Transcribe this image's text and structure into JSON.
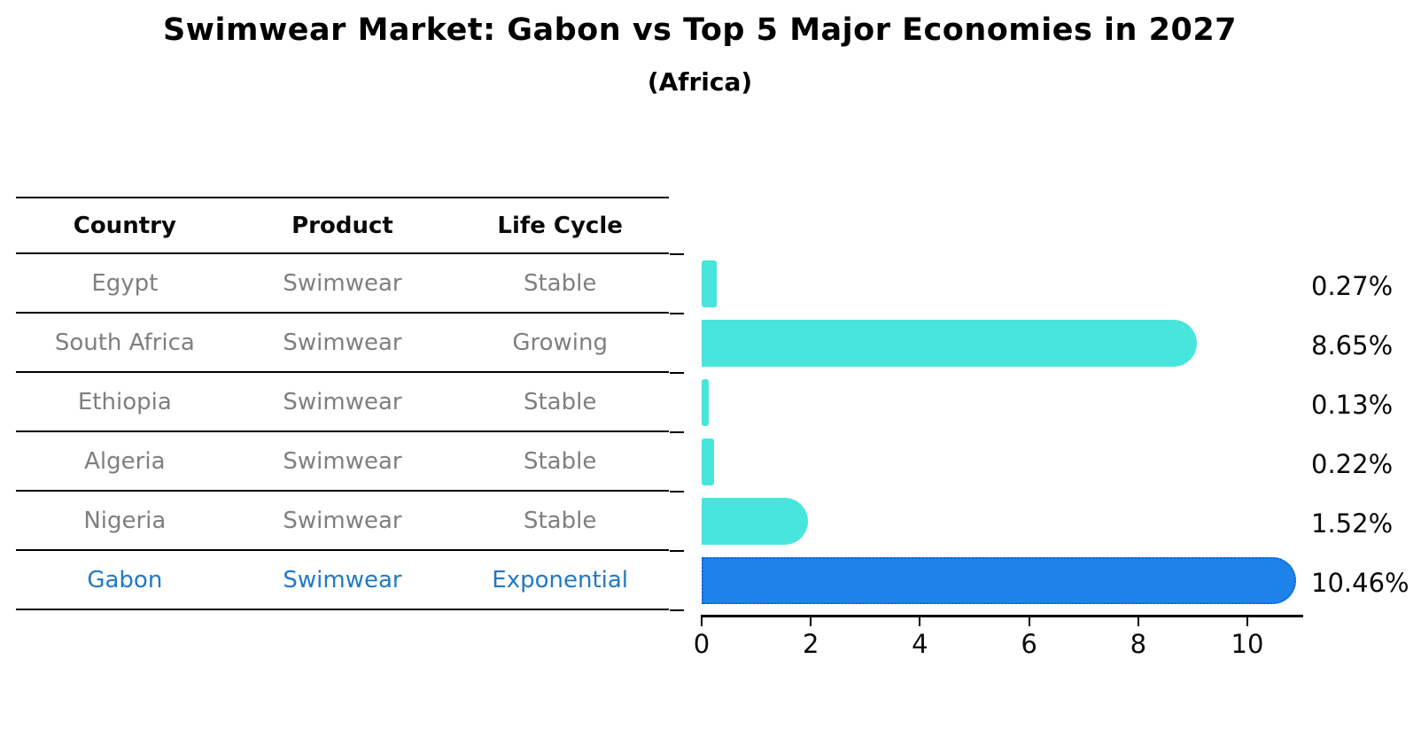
{
  "title": "Swimwear Market: Gabon vs Top 5 Major Economies in 2027",
  "subtitle": "(Africa)",
  "table": {
    "headers": [
      "Country",
      "Product",
      "Life Cycle"
    ],
    "rows": [
      {
        "country": "Egypt",
        "product": "Swimwear",
        "life_cycle": "Stable",
        "highlight": false
      },
      {
        "country": "South Africa",
        "product": "Swimwear",
        "life_cycle": "Growing",
        "highlight": false
      },
      {
        "country": "Ethiopia",
        "product": "Swimwear",
        "life_cycle": "Stable",
        "highlight": false
      },
      {
        "country": "Algeria",
        "product": "Swimwear",
        "life_cycle": "Stable",
        "highlight": false
      },
      {
        "country": "Nigeria",
        "product": "Swimwear",
        "life_cycle": "Stable",
        "highlight": false
      },
      {
        "country": "Gabon",
        "product": "Swimwear",
        "life_cycle": "Exponential",
        "highlight": true
      }
    ]
  },
  "chart_data": {
    "type": "bar",
    "orientation": "horizontal",
    "title": "Swimwear Market: Gabon vs Top 5 Major Economies in 2027",
    "subtitle": "(Africa)",
    "categories": [
      "Egypt",
      "South Africa",
      "Ethiopia",
      "Algeria",
      "Nigeria",
      "Gabon"
    ],
    "values": [
      0.27,
      8.65,
      0.13,
      0.22,
      1.52,
      10.46
    ],
    "value_labels": [
      "0.27%",
      "8.65%",
      "0.13%",
      "0.22%",
      "1.52%",
      "10.46%"
    ],
    "xlim": [
      0,
      11
    ],
    "xticks": [
      0,
      2,
      4,
      6,
      8,
      10
    ],
    "grid": false,
    "legend": false,
    "highlight_index": 5,
    "colors": {
      "bar": "#48E5DC",
      "highlight_bar": "#1E82EA",
      "highlight_bar_border": "#1365D6",
      "highlight_row_text": "#2279C4",
      "row_text": "#7f7f7f",
      "axis": "#000000"
    }
  }
}
